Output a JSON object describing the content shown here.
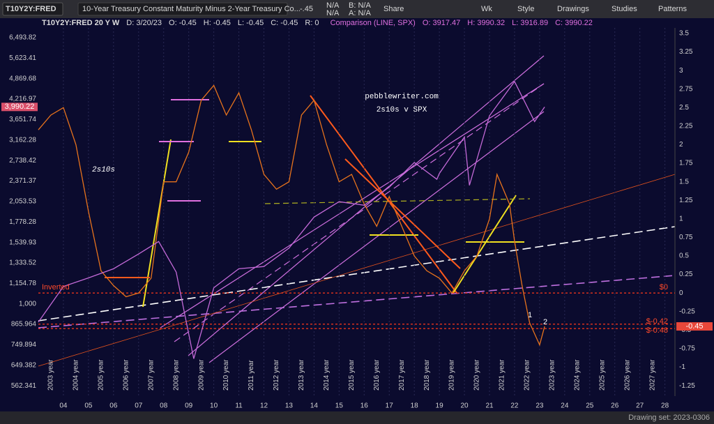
{
  "toolbar": {
    "symbol": "T10Y2Y:FRED",
    "description": "10-Year Treasury Constant Maturity Minus 2-Year Treasury Co...",
    "last": "-.45",
    "quote_fields": [
      "N/A",
      "N/A",
      "B: N/A",
      "A: N/A"
    ],
    "buttons": [
      "Share",
      "Wk",
      "Style",
      "Drawings",
      "Studies",
      "Patterns"
    ]
  },
  "header": {
    "items": [
      "T10Y2Y:FRED 20 Y W",
      "D: 3/20/23",
      "O: -0.45",
      "H: -0.45",
      "L: -0.45",
      "C: -0.45",
      "R: 0"
    ],
    "comparison": [
      "Comparison (LINE, SPX)",
      "O: 3917.47",
      "H: 3990.32",
      "L: 3916.89",
      "C: 3990.22"
    ]
  },
  "status_bar": {
    "text": "Drawing set: 2023-0306"
  },
  "chart_data": {
    "type": "line",
    "annotations": [
      "pebblewriter.com",
      "2s10s v SPX",
      "2s10s",
      "Inverted",
      "1",
      "2"
    ],
    "xlim": [
      2003.0,
      2028.4
    ],
    "xticks": [
      {
        "value": 2004,
        "label": "04"
      },
      {
        "value": 2005,
        "label": "05"
      },
      {
        "value": 2006,
        "label": "06"
      },
      {
        "value": 2007,
        "label": "07"
      },
      {
        "value": 2008,
        "label": "08"
      },
      {
        "value": 2009,
        "label": "09"
      },
      {
        "value": 2010,
        "label": "10"
      },
      {
        "value": 2011,
        "label": "11"
      },
      {
        "value": 2012,
        "label": "12"
      },
      {
        "value": 2013,
        "label": "13"
      },
      {
        "value": 2014,
        "label": "14"
      },
      {
        "value": 2015,
        "label": "15"
      },
      {
        "value": 2016,
        "label": "16"
      },
      {
        "value": 2017,
        "label": "17"
      },
      {
        "value": 2018,
        "label": "18"
      },
      {
        "value": 2019,
        "label": "19"
      },
      {
        "value": 2020,
        "label": "20"
      },
      {
        "value": 2021,
        "label": "21"
      },
      {
        "value": 2022,
        "label": "22"
      },
      {
        "value": 2023,
        "label": "23"
      },
      {
        "value": 2024,
        "label": "24"
      },
      {
        "value": 2025,
        "label": "25"
      },
      {
        "value": 2026,
        "label": "26"
      },
      {
        "value": 2027,
        "label": "27"
      },
      {
        "value": 2028,
        "label": "28"
      }
    ],
    "year_labels": [
      "2003 year",
      "2004 year",
      "2005 year",
      "2006 year",
      "2007 year",
      "2008 year",
      "2009 year",
      "2010 year",
      "2011 year",
      "2012 year",
      "2013 year",
      "2014 year",
      "2015 year",
      "2016 year",
      "2017 year",
      "2018 year",
      "2019 year",
      "2020 year",
      "2021 year",
      "2022 year",
      "2023 year",
      "2024 year",
      "2025 year",
      "2026 year",
      "2027 year"
    ],
    "log_scale": true,
    "ylim": [
      523,
      6953
    ],
    "yticks": [
      {
        "value": 6493.82,
        "label": "6,493.82"
      },
      {
        "value": 5623.41,
        "label": "5,623.41"
      },
      {
        "value": 4869.68,
        "label": "4,869.68"
      },
      {
        "value": 4216.97,
        "label": "4,216.97"
      },
      {
        "value": 3651.74,
        "label": "3,651.74"
      },
      {
        "value": 3162.28,
        "label": "3,162.28"
      },
      {
        "value": 2738.42,
        "label": "2,738.42"
      },
      {
        "value": 2371.37,
        "label": "2,371.37"
      },
      {
        "value": 2053.53,
        "label": "2,053.53"
      },
      {
        "value": 1778.28,
        "label": "1,778.28"
      },
      {
        "value": 1539.93,
        "label": "1,539.93"
      },
      {
        "value": 1333.52,
        "label": "1,333.52"
      },
      {
        "value": 1154.78,
        "label": "1,154.78"
      },
      {
        "value": 1000,
        "label": "1,000"
      },
      865.964,
      749.894,
      649.382,
      562.341
    ],
    "y2lim": [
      -1.39,
      3.575
    ],
    "y2ticks": [
      3.5,
      3.25,
      3,
      2.75,
      2.5,
      2.25,
      2,
      1.75,
      1.5,
      1.25,
      1,
      0.75,
      0.5,
      0.25,
      0,
      -0.25,
      -0.5,
      -0.75,
      -1,
      -1.25
    ],
    "series": [
      {
        "name": "T10Y2Y",
        "color": "#e8731c",
        "axis": "y2",
        "x": [
          2003.0,
          2003.5,
          2004.0,
          2004.5,
          2005.0,
          2005.5,
          2006.0,
          2006.5,
          2007.0,
          2007.5,
          2008.0,
          2008.5,
          2009.0,
          2009.5,
          2010.0,
          2010.5,
          2011.0,
          2011.5,
          2012.0,
          2012.5,
          2013.0,
          2013.5,
          2014.0,
          2014.5,
          2015.0,
          2015.5,
          2016.0,
          2016.5,
          2017.0,
          2017.5,
          2018.0,
          2018.5,
          2019.0,
          2019.5,
          2020.0,
          2020.5,
          2021.0,
          2021.3,
          2021.8,
          2022.0,
          2022.3,
          2022.6,
          2023.0,
          2023.2
        ],
        "values": [
          2.2,
          2.4,
          2.5,
          2.0,
          1.1,
          0.3,
          0.1,
          -0.05,
          0.0,
          0.2,
          1.5,
          1.5,
          1.9,
          2.6,
          2.8,
          2.4,
          2.7,
          2.2,
          1.6,
          1.4,
          1.5,
          2.4,
          2.6,
          2.0,
          1.5,
          1.6,
          1.2,
          0.9,
          1.3,
          0.9,
          0.5,
          0.3,
          0.2,
          0.0,
          0.3,
          0.5,
          1.0,
          1.6,
          1.2,
          0.7,
          0.1,
          -0.4,
          -0.7,
          -0.45
        ]
      },
      {
        "name": "SPX",
        "color": "#c46ad8",
        "x": [
          2003.0,
          2004.0,
          2005.0,
          2006.0,
          2007.0,
          2007.8,
          2008.5,
          2009.2,
          2010.0,
          2011.0,
          2012.0,
          2013.0,
          2014.0,
          2015.0,
          2016.0,
          2017.0,
          2018.0,
          2018.9,
          2019.0,
          2020.0,
          2020.2,
          2021.0,
          2022.0,
          2022.8,
          2023.2
        ],
        "values": [
          880,
          1130,
          1200,
          1280,
          1420,
          1550,
          1250,
          680,
          1120,
          1280,
          1300,
          1480,
          1840,
          2050,
          2000,
          2270,
          2700,
          2400,
          2500,
          3230,
          2300,
          3750,
          4770,
          3600,
          3990
        ]
      }
    ],
    "markers": [
      {
        "axis": "y",
        "value": 3990.22,
        "label": "3,990.22",
        "color": "#d94f6a"
      },
      {
        "axis": "y2",
        "value": -0.45,
        "label": "-0.45",
        "color": "#e8473a"
      }
    ],
    "reference_lines": [
      {
        "value": 0,
        "label": "$0"
      },
      {
        "value": -0.42,
        "label": "$-0.42"
      },
      {
        "value": -0.48,
        "label": "$-0.48"
      }
    ]
  }
}
